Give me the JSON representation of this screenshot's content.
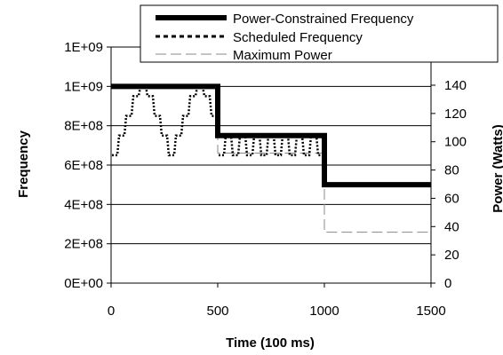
{
  "chart_data": {
    "type": "line",
    "title": "",
    "xlabel": "Time (100 ms)",
    "ylabel": "Frequency",
    "y2label": "Power (Watts)",
    "xlim": [
      0,
      1500
    ],
    "ylim": [
      0,
      1200000000
    ],
    "y2lim": [
      0,
      167
    ],
    "x_ticks": [
      "0",
      "500",
      "1000",
      "1500"
    ],
    "y_ticks": [
      "0E+00",
      "2E+08",
      "4E+08",
      "6E+08",
      "8E+08",
      "1E+09",
      "1E+09"
    ],
    "y2_ticks": [
      "0",
      "20",
      "40",
      "60",
      "80",
      "100",
      "120",
      "140"
    ],
    "grid": true,
    "legend_position": "top-right",
    "series": [
      {
        "name": "Power-Constrained Frequency",
        "axis": "left",
        "color": "#000000",
        "style": "solid-thick",
        "x": [
          0,
          500,
          500,
          1000,
          1000,
          1500
        ],
        "y": [
          1000000000,
          1000000000,
          750000000,
          750000000,
          500000000,
          500000000
        ]
      },
      {
        "name": "Scheduled Frequency",
        "axis": "left",
        "color": "#000000",
        "style": "dotted",
        "levels": [
          650000000,
          750000000,
          850000000,
          950000000,
          1000000000
        ],
        "segments": [
          {
            "x_start": 0,
            "x_end": 500,
            "min": 650000000,
            "max": 1000000000
          },
          {
            "x_start": 500,
            "x_end": 1000,
            "min": 650000000,
            "max": 750000000
          },
          {
            "x_start": 1000,
            "x_end": 1500,
            "min": 500000000,
            "max": 500000000
          }
        ]
      },
      {
        "name": "Maximum Power",
        "axis": "right",
        "color": "#888888",
        "style": "dashed-thin",
        "x": [
          0,
          500,
          500,
          1000,
          1000,
          1500
        ],
        "y": [
          140,
          140,
          92,
          92,
          36,
          36
        ]
      }
    ]
  }
}
